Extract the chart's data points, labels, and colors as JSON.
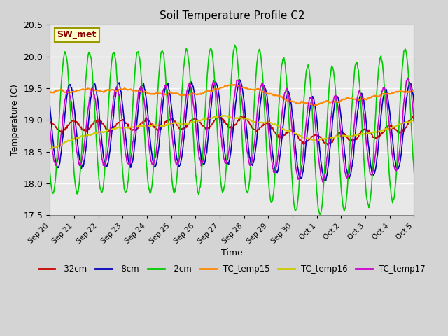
{
  "title": "Soil Temperature Profile C2",
  "ylabel": "Temperature (C)",
  "xlabel": "Time",
  "annotation": "SW_met",
  "ylim": [
    17.5,
    20.5
  ],
  "fig_facecolor": "#d4d4d4",
  "plot_facecolor": "#e8e8e8",
  "series": {
    "-32cm": {
      "color": "#cc0000",
      "lw": 1.2
    },
    "-8cm": {
      "color": "#0000bb",
      "lw": 1.2
    },
    "-2cm": {
      "color": "#00cc00",
      "lw": 1.2
    },
    "TC_temp15": {
      "color": "#ff8800",
      "lw": 1.5
    },
    "TC_temp16": {
      "color": "#cccc00",
      "lw": 1.5
    },
    "TC_temp17": {
      "color": "#cc00cc",
      "lw": 1.2
    }
  },
  "legend_items": [
    [
      "-32cm",
      "#cc0000"
    ],
    [
      "-8cm",
      "#0000bb"
    ],
    [
      "-2cm",
      "#00cc00"
    ],
    [
      "TC_temp15",
      "#ff8800"
    ],
    [
      "TC_temp16",
      "#cccc00"
    ],
    [
      "TC_temp17",
      "#cc00cc"
    ]
  ],
  "grid_color": "#ffffff",
  "annotation_color": "#8b0000",
  "annotation_facecolor": "#ffffcc",
  "annotation_edgecolor": "#999900"
}
